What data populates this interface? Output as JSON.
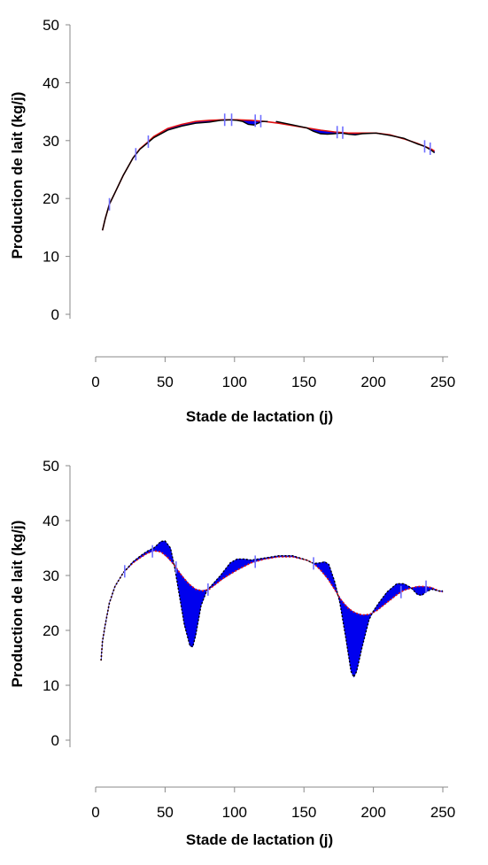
{
  "chart_data": [
    {
      "type": "line",
      "xlabel": "Stade de lactation (j)",
      "ylabel": "Production de lait (kg/j)",
      "xlim": [
        0,
        250
      ],
      "ylim": [
        0,
        50
      ],
      "xticks": [
        0,
        50,
        100,
        150,
        200,
        250
      ],
      "yticks": [
        0,
        10,
        20,
        30,
        40,
        50
      ],
      "grid": false,
      "colors": {
        "observed": "#000000",
        "model": "#e01010",
        "deviation": "#0000ee",
        "marker": "#6f6fff"
      },
      "series": [
        {
          "points": [
            [
              3,
              14.5
            ],
            [
              5,
              16.5
            ],
            [
              8,
              19
            ],
            [
              12,
              21
            ],
            [
              18,
              24
            ],
            [
              25,
              27
            ],
            [
              30,
              28.5
            ],
            [
              35,
              29.5
            ],
            [
              40,
              30.5
            ],
            [
              50,
              31.8
            ],
            [
              60,
              32.5
            ],
            [
              70,
              33
            ],
            [
              80,
              33.2
            ],
            [
              88,
              33.5
            ],
            [
              95,
              33.6
            ],
            [
              100,
              33.5
            ],
            [
              104,
              33.3
            ],
            [
              108,
              32.8
            ],
            [
              112,
              32.7
            ],
            [
              115,
              33.0
            ],
            [
              118,
              33.3
            ],
            [
              122,
              33.3
            ]
          ]
        },
        {
          "points": [
            [
              128,
              33.3
            ],
            [
              140,
              32.7
            ],
            [
              150,
              32.2
            ],
            [
              155,
              31.6
            ],
            [
              160,
              31.2
            ],
            [
              165,
              31.1
            ],
            [
              170,
              31.2
            ],
            [
              175,
              31.3
            ],
            [
              180,
              31.1
            ],
            [
              185,
              31.0
            ],
            [
              190,
              31.2
            ],
            [
              200,
              31.3
            ],
            [
              210,
              30.9
            ],
            [
              220,
              30.4
            ],
            [
              225,
              29.9
            ],
            [
              230,
              29.4
            ],
            [
              235,
              29.0
            ],
            [
              240,
              28.3
            ],
            [
              242,
              27.9
            ]
          ]
        },
        {
          "points": [
            [
              3,
              14.5
            ],
            [
              5,
              16.5
            ],
            [
              8,
              19
            ],
            [
              12,
              21
            ],
            [
              18,
              24
            ],
            [
              25,
              27
            ],
            [
              30,
              28.6
            ],
            [
              35,
              29.6
            ],
            [
              40,
              30.7
            ],
            [
              50,
              32.1
            ],
            [
              60,
              32.8
            ],
            [
              70,
              33.3
            ],
            [
              80,
              33.5
            ],
            [
              90,
              33.6
            ],
            [
              100,
              33.6
            ],
            [
              110,
              33.5
            ],
            [
              120,
              33.3
            ],
            [
              130,
              33.0
            ],
            [
              140,
              32.6
            ],
            [
              150,
              32.2
            ],
            [
              160,
              31.8
            ],
            [
              170,
              31.5
            ],
            [
              180,
              31.3
            ],
            [
              190,
              31.3
            ],
            [
              200,
              31.3
            ],
            [
              210,
              31.0
            ],
            [
              220,
              30.3
            ],
            [
              230,
              29.5
            ],
            [
              240,
              28.5
            ],
            [
              242,
              28.2
            ]
          ]
        }
      ],
      "markers_x": [
        8,
        27,
        36,
        91,
        96,
        113,
        117,
        172,
        176,
        235,
        239
      ]
    },
    {
      "type": "line",
      "xlabel": "Stade de lactation (j)",
      "ylabel": "Production de lait (kg/j)",
      "xlim": [
        0,
        250
      ],
      "ylim": [
        0,
        50
      ],
      "xticks": [
        0,
        50,
        100,
        150,
        200,
        250
      ],
      "yticks": [
        0,
        10,
        20,
        30,
        40,
        50
      ],
      "grid": false,
      "colors": {
        "observed": "#000000",
        "model": "#e01010",
        "deviation": "#0000ee",
        "marker": "#6f6fff"
      },
      "series": [
        {
          "points": [
            [
              2,
              14.5
            ],
            [
              3,
              18
            ],
            [
              5,
              21
            ],
            [
              8,
              25
            ],
            [
              12,
              28
            ],
            [
              18,
              30.5
            ],
            [
              25,
              32.5
            ],
            [
              30,
              33.5
            ],
            [
              35,
              34.4
            ],
            [
              40,
              35
            ],
            [
              45,
              36.2
            ],
            [
              48,
              36.3
            ],
            [
              52,
              35
            ],
            [
              55,
              31.5
            ],
            [
              58,
              27
            ],
            [
              62,
              21
            ],
            [
              66,
              17.2
            ],
            [
              68,
              17
            ],
            [
              70,
              19
            ],
            [
              74,
              24.5
            ],
            [
              78,
              27.2
            ],
            [
              82,
              28.3
            ],
            [
              88,
              30
            ],
            [
              95,
              32.3
            ],
            [
              100,
              33
            ],
            [
              105,
              33
            ],
            [
              110,
              32.8
            ],
            [
              120,
              33.2
            ],
            [
              130,
              33.6
            ],
            [
              140,
              33.6
            ],
            [
              150,
              32.8
            ],
            [
              155,
              32.2
            ],
            [
              160,
              32.3
            ],
            [
              163,
              32.5
            ],
            [
              166,
              32
            ],
            [
              170,
              29
            ],
            [
              174,
              25
            ],
            [
              178,
              19
            ],
            [
              182,
              12.5
            ],
            [
              184,
              11.5
            ],
            [
              186,
              12.5
            ],
            [
              190,
              17
            ],
            [
              195,
              22
            ],
            [
              198,
              23.5
            ],
            [
              202,
              25
            ],
            [
              208,
              27
            ],
            [
              215,
              28.5
            ],
            [
              220,
              28.5
            ],
            [
              225,
              27.8
            ],
            [
              230,
              26.5
            ],
            [
              233,
              26.4
            ],
            [
              236,
              27
            ],
            [
              240,
              27.5
            ],
            [
              245,
              27.2
            ],
            [
              248,
              27.2
            ]
          ]
        },
        {
          "points": [
            [
              2,
              14.5
            ],
            [
              3,
              18
            ],
            [
              5,
              21
            ],
            [
              8,
              25
            ],
            [
              12,
              28
            ],
            [
              18,
              30.5
            ],
            [
              25,
              32.3
            ],
            [
              30,
              33.2
            ],
            [
              35,
              34
            ],
            [
              40,
              34.5
            ],
            [
              45,
              34.3
            ],
            [
              50,
              33.3
            ],
            [
              55,
              31.8
            ],
            [
              60,
              30
            ],
            [
              65,
              28.5
            ],
            [
              70,
              27.5
            ],
            [
              75,
              27.2
            ],
            [
              80,
              27.5
            ],
            [
              85,
              28.5
            ],
            [
              90,
              29.5
            ],
            [
              100,
              31
            ],
            [
              110,
              32.3
            ],
            [
              120,
              33
            ],
            [
              130,
              33.4
            ],
            [
              140,
              33.4
            ],
            [
              150,
              32.8
            ],
            [
              155,
              32.2
            ],
            [
              160,
              31
            ],
            [
              165,
              29.5
            ],
            [
              170,
              27.5
            ],
            [
              175,
              25.5
            ],
            [
              180,
              24
            ],
            [
              185,
              23.2
            ],
            [
              190,
              22.8
            ],
            [
              195,
              22.9
            ],
            [
              200,
              23.5
            ],
            [
              205,
              24.5
            ],
            [
              210,
              25.5
            ],
            [
              215,
              26.5
            ],
            [
              220,
              27.3
            ],
            [
              225,
              27.7
            ],
            [
              230,
              28
            ],
            [
              235,
              28
            ],
            [
              240,
              27.8
            ],
            [
              245,
              27.2
            ],
            [
              248,
              27.0
            ]
          ]
        }
      ],
      "markers_x": [
        19,
        39,
        56,
        79,
        113,
        155,
        218,
        236
      ]
    }
  ]
}
